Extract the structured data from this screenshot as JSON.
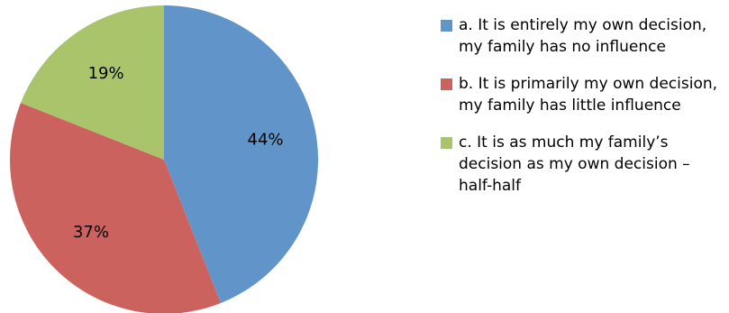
{
  "chart_data": {
    "type": "pie",
    "categories": [
      "a. It is entirely my own decision, my family has no influence",
      "b. It is primarily my own decision, my family has little influence",
      "c. It is as much my family’s decision as my own decision – half-half"
    ],
    "values": [
      44,
      37,
      19
    ],
    "labels": [
      "44%",
      "37%",
      "19%"
    ],
    "colors": [
      "#6195C9",
      "#CC625D",
      "#A9C46A"
    ],
    "legend_position": "right",
    "title": ""
  }
}
